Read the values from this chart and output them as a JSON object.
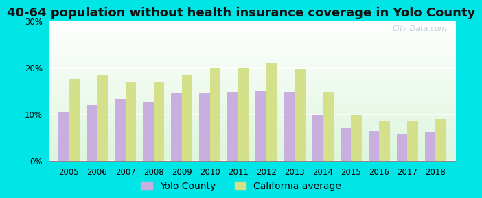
{
  "title": "40-64 population without health insurance coverage in Yolo County",
  "years": [
    2005,
    2006,
    2007,
    2008,
    2009,
    2010,
    2011,
    2012,
    2013,
    2014,
    2015,
    2016,
    2017,
    2018
  ],
  "yolo_county": [
    10.5,
    12.0,
    13.3,
    12.7,
    14.5,
    14.5,
    14.8,
    15.0,
    14.8,
    9.8,
    7.0,
    6.5,
    5.8,
    6.3
  ],
  "california_avg": [
    17.5,
    18.5,
    17.0,
    17.0,
    18.5,
    20.0,
    20.0,
    21.0,
    19.8,
    14.8,
    9.8,
    8.7,
    8.7,
    9.0
  ],
  "yolo_color": "#c9aee0",
  "ca_color": "#d4e08a",
  "outer_bg": "#00e5e5",
  "plot_bg_top": "#e8f8e8",
  "plot_bg_bottom": "#f8fff8",
  "ylim": [
    0,
    30
  ],
  "yticks": [
    0,
    10,
    20,
    30
  ],
  "bar_width": 0.38,
  "title_fontsize": 13,
  "tick_fontsize": 8.5,
  "legend_fontsize": 10,
  "watermark": "City-Data.com"
}
